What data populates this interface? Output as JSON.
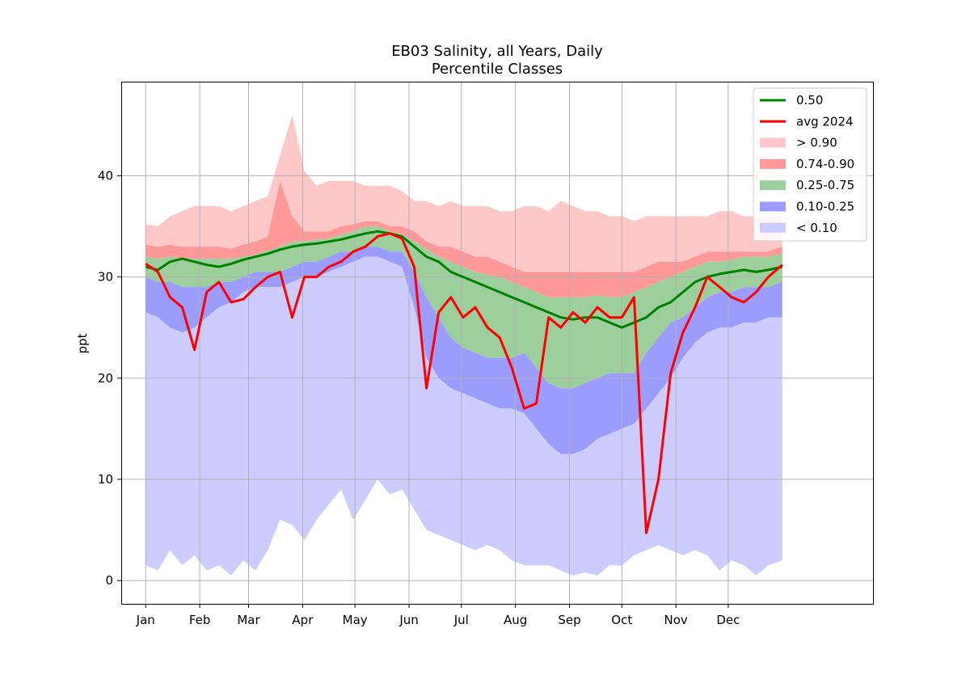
{
  "chart_data": {
    "type": "area",
    "title": "EB03 Salinity, all Years, Daily",
    "subtitle": "Percentile Classes",
    "xlabel": "",
    "ylabel": "ppt",
    "ylim": [
      -2.3,
      49.3
    ],
    "xlim": [
      -13,
      418
    ],
    "grid": true,
    "legend_position": "top-right",
    "x_ticks": [
      {
        "day": 1,
        "label": "Jan"
      },
      {
        "day": 32,
        "label": "Feb"
      },
      {
        "day": 60,
        "label": "Mar"
      },
      {
        "day": 91,
        "label": "Apr"
      },
      {
        "day": 121,
        "label": "May"
      },
      {
        "day": 152,
        "label": "Jun"
      },
      {
        "day": 182,
        "label": "Jul"
      },
      {
        "day": 213,
        "label": "Aug"
      },
      {
        "day": 244,
        "label": "Sep"
      },
      {
        "day": 274,
        "label": "Oct"
      },
      {
        "day": 305,
        "label": "Nov"
      },
      {
        "day": 335,
        "label": "Dec"
      }
    ],
    "y_ticks": [
      0,
      10,
      20,
      30,
      40
    ],
    "x_unit": "day of year",
    "x": [
      1,
      8,
      15,
      22,
      29,
      36,
      43,
      50,
      57,
      64,
      71,
      78,
      85,
      92,
      99,
      106,
      113,
      120,
      127,
      134,
      141,
      148,
      155,
      162,
      169,
      176,
      183,
      190,
      197,
      204,
      211,
      218,
      225,
      232,
      239,
      246,
      253,
      260,
      267,
      274,
      281,
      288,
      295,
      302,
      309,
      316,
      323,
      330,
      337,
      344,
      351,
      358,
      366
    ],
    "bands": [
      {
        "name": "> 0.90",
        "color": "#ffc8c8",
        "lower": [
          33.2,
          33.0,
          33.2,
          33.0,
          33.0,
          33.0,
          33.0,
          32.8,
          33.2,
          33.5,
          34.0,
          39.5,
          36.0,
          34.5,
          34.5,
          34.5,
          35.0,
          35.2,
          35.5,
          35.5,
          35.0,
          35.0,
          34.5,
          33.5,
          33.0,
          33.0,
          32.5,
          32.0,
          32.0,
          31.5,
          31.0,
          30.5,
          30.5,
          30.5,
          30.5,
          30.5,
          30.5,
          30.5,
          30.5,
          30.5,
          30.5,
          31.0,
          31.5,
          31.5,
          31.5,
          32.0,
          32.5,
          32.5,
          32.5,
          32.5,
          32.5,
          32.5,
          33.0
        ],
        "upper": [
          35.2,
          35.0,
          36.0,
          36.5,
          37.0,
          37.0,
          37.0,
          36.5,
          37.0,
          37.5,
          38.0,
          42.0,
          46.0,
          40.5,
          39.0,
          39.5,
          39.5,
          39.5,
          39.0,
          39.0,
          39.0,
          38.5,
          37.5,
          37.5,
          37.0,
          37.5,
          37.0,
          37.0,
          37.0,
          36.5,
          36.5,
          37.0,
          37.0,
          36.5,
          37.5,
          37.0,
          36.5,
          36.5,
          36.0,
          36.0,
          35.5,
          36.0,
          36.0,
          36.0,
          36.0,
          36.0,
          36.0,
          36.5,
          36.5,
          36.0,
          36.0,
          36.0,
          36.0
        ]
      },
      {
        "name": "0.74-0.90",
        "color": "#ff9999",
        "lower": [
          32.0,
          31.8,
          32.0,
          31.8,
          31.8,
          31.8,
          31.8,
          31.8,
          32.0,
          32.2,
          32.6,
          33.0,
          33.5,
          33.5,
          33.7,
          33.8,
          34.2,
          34.5,
          35.0,
          35.0,
          34.5,
          34.2,
          33.5,
          32.8,
          32.0,
          31.5,
          31.0,
          30.5,
          30.2,
          30.0,
          29.5,
          29.0,
          28.5,
          28.0,
          28.0,
          28.0,
          28.0,
          28.2,
          28.0,
          28.0,
          28.5,
          29.0,
          29.5,
          30.0,
          30.5,
          31.0,
          31.5,
          31.5,
          31.7,
          32.0,
          32.0,
          32.0,
          32.3
        ],
        "upper": [
          33.2,
          33.0,
          33.2,
          33.0,
          33.0,
          33.0,
          33.0,
          32.8,
          33.2,
          33.5,
          34.0,
          39.5,
          36.0,
          34.5,
          34.5,
          34.5,
          35.0,
          35.2,
          35.5,
          35.5,
          35.0,
          35.0,
          34.5,
          33.5,
          33.0,
          33.0,
          32.5,
          32.0,
          32.0,
          31.5,
          31.0,
          30.5,
          30.5,
          30.5,
          30.5,
          30.5,
          30.5,
          30.5,
          30.5,
          30.5,
          30.5,
          31.0,
          31.5,
          31.5,
          31.5,
          32.0,
          32.5,
          32.5,
          32.5,
          32.5,
          32.5,
          32.5,
          33.0
        ]
      },
      {
        "name": "0.25-0.75",
        "color": "#9ccf9c",
        "lower": [
          30.0,
          29.5,
          29.5,
          29.0,
          29.0,
          29.0,
          29.5,
          29.5,
          30.0,
          30.5,
          30.5,
          30.5,
          31.0,
          31.5,
          31.5,
          32.0,
          32.5,
          32.5,
          33.0,
          33.0,
          32.5,
          32.5,
          30.5,
          28.0,
          26.0,
          24.0,
          23.0,
          22.5,
          22.0,
          22.0,
          22.0,
          22.5,
          21.0,
          19.5,
          19.0,
          19.0,
          19.5,
          20.0,
          20.5,
          20.5,
          20.5,
          22.5,
          24.0,
          25.5,
          26.0,
          27.0,
          28.0,
          28.5,
          28.5,
          29.0,
          29.0,
          29.0,
          29.5
        ],
        "upper": [
          32.0,
          31.8,
          32.0,
          31.8,
          31.8,
          31.8,
          31.8,
          31.8,
          32.0,
          32.2,
          32.6,
          33.0,
          33.5,
          33.5,
          33.7,
          33.8,
          34.2,
          34.5,
          35.0,
          35.0,
          34.5,
          34.2,
          33.5,
          32.8,
          32.0,
          31.5,
          31.0,
          30.5,
          30.2,
          30.0,
          29.5,
          29.0,
          28.5,
          28.0,
          28.0,
          28.0,
          28.0,
          28.2,
          28.0,
          28.0,
          28.5,
          29.0,
          29.5,
          30.0,
          30.5,
          31.0,
          31.5,
          31.5,
          31.7,
          32.0,
          32.0,
          32.0,
          32.3
        ]
      },
      {
        "name": "0.10-0.25",
        "color": "#9c9cff",
        "lower": [
          26.5,
          26.0,
          25.0,
          24.5,
          25.0,
          26.0,
          27.0,
          27.5,
          28.5,
          29.0,
          29.0,
          29.0,
          29.5,
          30.0,
          30.0,
          30.5,
          31.0,
          31.5,
          32.0,
          32.0,
          31.5,
          31.0,
          27.0,
          22.0,
          20.0,
          19.0,
          18.5,
          18.0,
          17.5,
          17.0,
          17.0,
          16.5,
          15.0,
          13.5,
          12.5,
          12.5,
          13.0,
          14.0,
          14.5,
          15.0,
          15.5,
          17.0,
          18.5,
          20.0,
          22.0,
          23.5,
          24.5,
          25.0,
          25.0,
          25.5,
          25.5,
          26.0,
          26.0
        ],
        "upper": [
          30.0,
          29.5,
          29.5,
          29.0,
          29.0,
          29.0,
          29.5,
          29.5,
          30.0,
          30.5,
          30.5,
          30.5,
          31.0,
          31.5,
          31.5,
          32.0,
          32.5,
          32.5,
          33.0,
          33.0,
          32.5,
          32.5,
          30.5,
          28.0,
          26.0,
          24.0,
          23.0,
          22.5,
          22.0,
          22.0,
          22.0,
          22.5,
          21.0,
          19.5,
          19.0,
          19.0,
          19.5,
          20.0,
          20.5,
          20.5,
          20.5,
          22.5,
          24.0,
          25.5,
          26.0,
          27.0,
          28.0,
          28.5,
          28.5,
          29.0,
          29.0,
          29.0,
          29.5
        ]
      },
      {
        "name": "< 0.10",
        "color": "#ccccff",
        "lower": [
          1.5,
          1.0,
          3.0,
          1.5,
          2.5,
          1.0,
          1.5,
          0.5,
          2.0,
          1.0,
          3.0,
          6.0,
          5.5,
          4.0,
          6.0,
          7.5,
          9.0,
          6.0,
          8.0,
          10.0,
          8.5,
          9.0,
          7.0,
          5.0,
          4.5,
          4.0,
          3.5,
          3.0,
          3.5,
          3.0,
          2.0,
          1.5,
          1.5,
          1.5,
          1.0,
          0.5,
          0.8,
          0.5,
          1.5,
          1.5,
          2.5,
          3.0,
          3.5,
          3.0,
          2.5,
          3.0,
          2.5,
          1.0,
          2.0,
          1.5,
          0.5,
          1.5,
          2.0
        ],
        "upper": [
          26.5,
          26.0,
          25.0,
          24.5,
          25.0,
          26.0,
          27.0,
          27.5,
          28.5,
          29.0,
          29.0,
          29.0,
          29.5,
          30.0,
          30.0,
          30.5,
          31.0,
          31.5,
          32.0,
          32.0,
          31.5,
          31.0,
          27.0,
          22.0,
          20.0,
          19.0,
          18.5,
          18.0,
          17.5,
          17.0,
          17.0,
          16.5,
          15.0,
          13.5,
          12.5,
          12.5,
          13.0,
          14.0,
          14.5,
          15.0,
          15.5,
          17.0,
          18.5,
          20.0,
          22.0,
          23.5,
          24.5,
          25.0,
          25.0,
          25.5,
          25.5,
          26.0,
          26.0
        ]
      }
    ],
    "series": [
      {
        "name": "0.50",
        "color": "#008000",
        "values": [
          31.0,
          30.7,
          31.5,
          31.8,
          31.5,
          31.2,
          31.0,
          31.3,
          31.7,
          32.0,
          32.3,
          32.7,
          33.0,
          33.2,
          33.3,
          33.5,
          33.7,
          34.0,
          34.3,
          34.5,
          34.3,
          34.0,
          33.0,
          32.0,
          31.5,
          30.5,
          30.0,
          29.5,
          29.0,
          28.5,
          28.0,
          27.5,
          27.0,
          26.5,
          26.0,
          25.8,
          26.0,
          26.0,
          25.5,
          25.0,
          25.5,
          26.0,
          27.0,
          27.5,
          28.5,
          29.5,
          30.0,
          30.3,
          30.5,
          30.7,
          30.5,
          30.7,
          31.0
        ]
      },
      {
        "name": "avg 2024",
        "color": "#ff0000",
        "values": [
          31.3,
          30.5,
          28.0,
          27.0,
          22.8,
          28.5,
          29.5,
          27.5,
          27.8,
          29.0,
          30.0,
          30.5,
          26.0,
          30.0,
          30.0,
          31.0,
          31.5,
          32.5,
          33.0,
          34.0,
          34.3,
          33.8,
          31.0,
          19.0,
          26.5,
          28.0,
          26.0,
          27.0,
          25.0,
          24.0,
          21.0,
          17.0,
          17.5,
          26.0,
          25.0,
          26.5,
          25.5,
          27.0,
          26.0,
          26.0,
          28.0,
          4.7,
          10.0,
          20.5,
          24.5,
          27.0,
          30.0,
          29.0,
          28.0,
          27.5,
          28.5,
          30.0,
          31.2
        ]
      }
    ],
    "legend": [
      "0.50",
      "avg 2024",
      "> 0.90",
      "0.74-0.90",
      "0.25-0.75",
      "0.10-0.25",
      "< 0.10"
    ]
  }
}
